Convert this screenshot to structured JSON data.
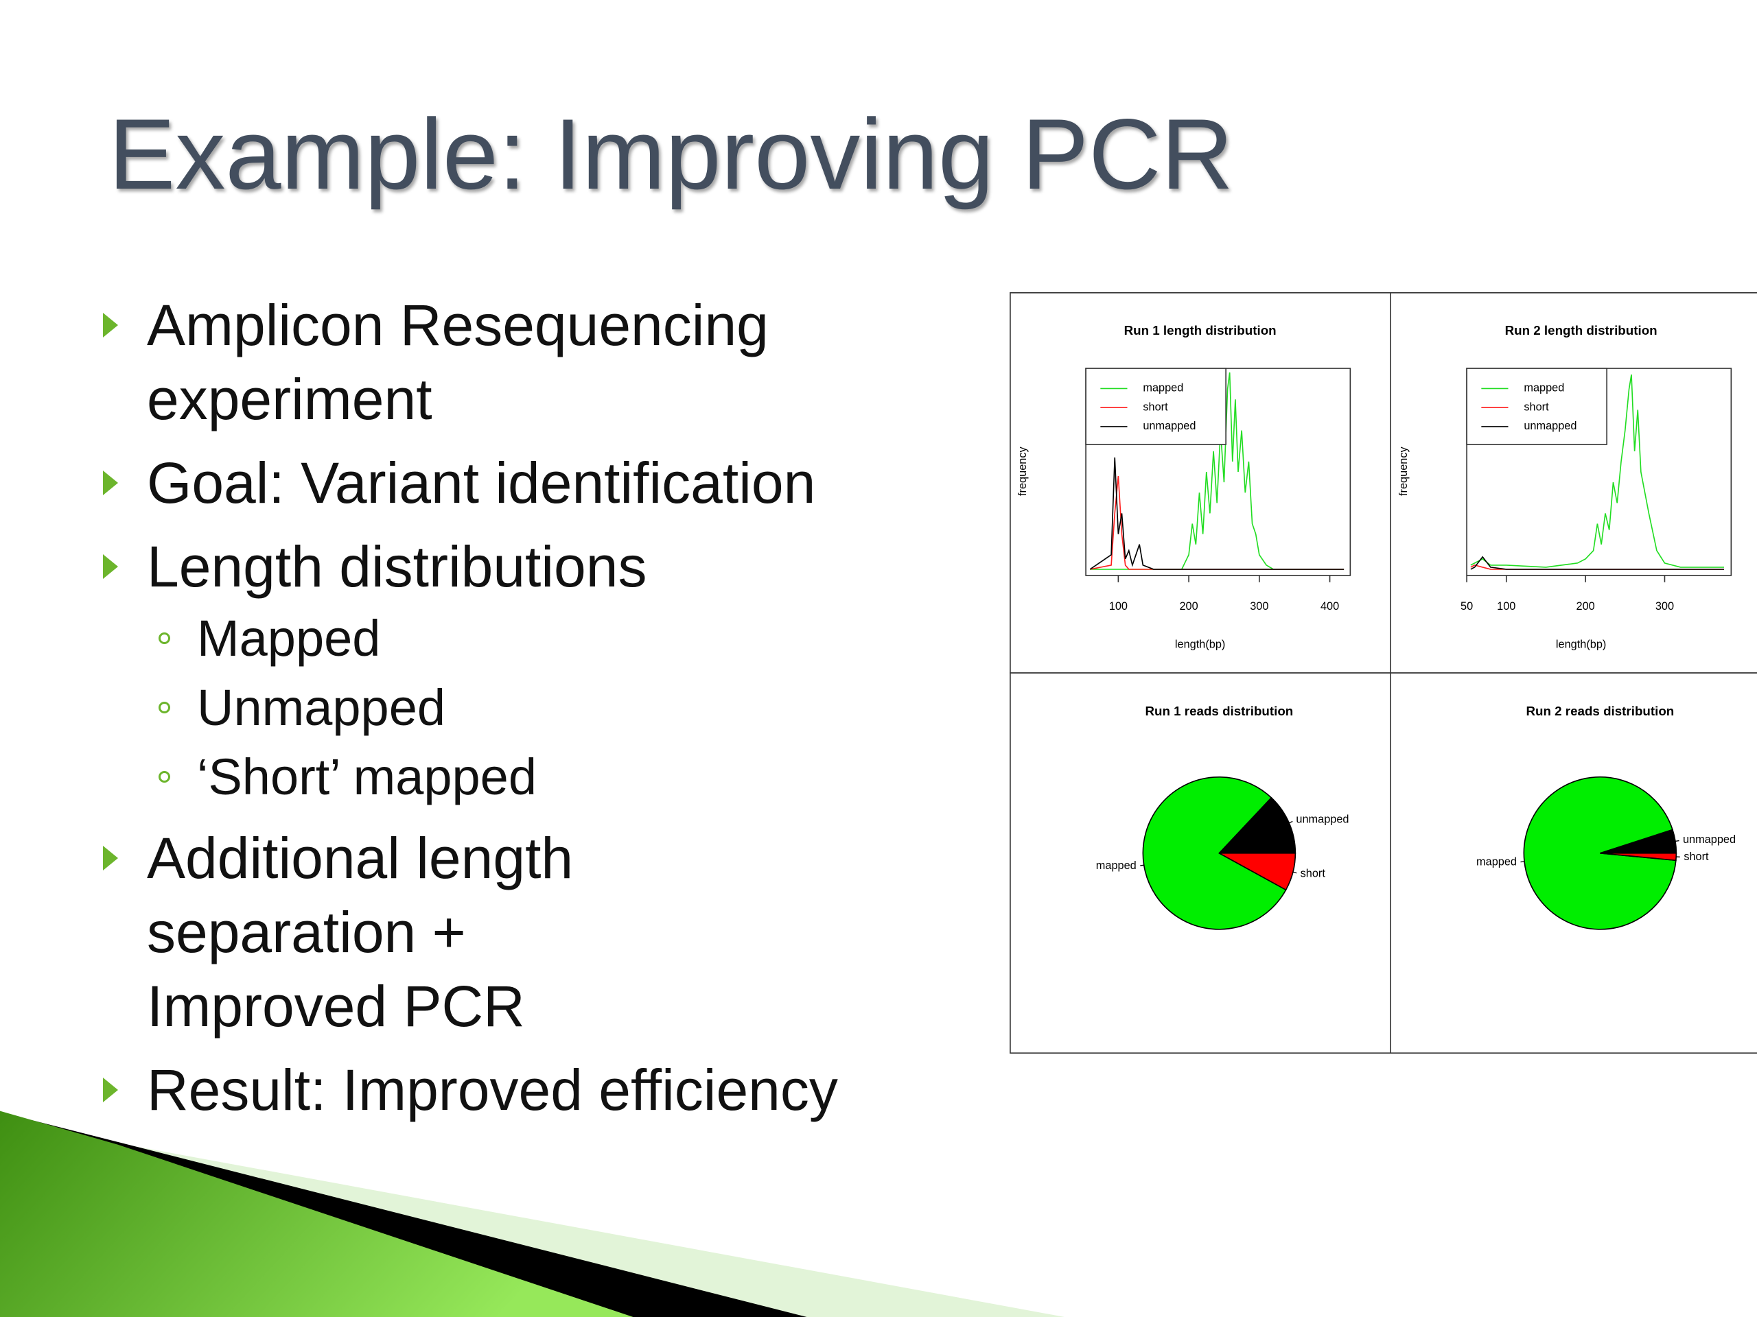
{
  "slide": {
    "title": "Example: Improving PCR",
    "bullets": [
      {
        "lines": [
          "Amplicon Resequencing",
          "experiment"
        ]
      },
      {
        "lines": [
          "Goal: Variant identification"
        ]
      },
      {
        "lines": [
          "Length distributions"
        ],
        "sub": [
          "Mapped",
          "Unmapped",
          "‘Short’ mapped"
        ]
      },
      {
        "lines": [
          "Additional length",
          "separation  +",
          "Improved PCR"
        ]
      },
      {
        "lines": [
          "Result: Improved efficiency"
        ]
      }
    ]
  },
  "chart_data": [
    {
      "type": "line",
      "title": "Run 1 length distribution",
      "xlabel": "length(bp)",
      "ylabel": "frequency",
      "x": [
        60,
        90,
        95,
        100,
        105,
        110,
        115,
        120,
        130,
        135,
        150,
        190,
        200,
        205,
        210,
        215,
        220,
        225,
        230,
        235,
        240,
        245,
        250,
        255,
        258,
        262,
        266,
        270,
        275,
        280,
        285,
        290,
        295,
        300,
        310,
        320,
        400,
        420
      ],
      "xlim": [
        54,
        429
      ],
      "xticks": [
        100,
        200,
        300,
        400
      ],
      "ylim": [
        0,
        100
      ],
      "legend": "topleft",
      "series": [
        {
          "name": "mapped",
          "color": "#22dd22",
          "values": [
            3,
            3,
            3,
            3,
            3,
            3,
            3,
            3,
            3,
            3,
            3,
            3,
            10,
            25,
            15,
            40,
            20,
            50,
            30,
            60,
            35,
            70,
            45,
            90,
            98,
            55,
            85,
            50,
            70,
            40,
            55,
            25,
            20,
            10,
            5,
            3,
            3,
            3
          ]
        },
        {
          "name": "short",
          "color": "#ff2020",
          "values": [
            3,
            5,
            30,
            48,
            20,
            5,
            3,
            3,
            3,
            3,
            3,
            3,
            3,
            3,
            3,
            3,
            3,
            3,
            3,
            3,
            3,
            3,
            3,
            3,
            3,
            3,
            3,
            3,
            3,
            3,
            3,
            3,
            3,
            3,
            3,
            3,
            3,
            3
          ]
        },
        {
          "name": "unmapped",
          "color": "#000000",
          "values": [
            3,
            10,
            57,
            20,
            30,
            8,
            12,
            5,
            15,
            5,
            3,
            3,
            3,
            3,
            3,
            3,
            3,
            3,
            3,
            3,
            3,
            3,
            3,
            3,
            3,
            3,
            3,
            3,
            3,
            3,
            3,
            3,
            3,
            3,
            3,
            3,
            3,
            3
          ]
        }
      ]
    },
    {
      "type": "line",
      "title": "Run 2 length distribution",
      "xlabel": "length(bp)",
      "ylabel": "frequency",
      "x": [
        55,
        60,
        70,
        80,
        100,
        150,
        190,
        200,
        210,
        215,
        220,
        225,
        230,
        235,
        240,
        245,
        250,
        255,
        258,
        262,
        266,
        270,
        275,
        280,
        290,
        300,
        320,
        375
      ],
      "xlim": [
        50,
        384
      ],
      "xticks": [
        50,
        100,
        200,
        300
      ],
      "ylim": [
        0,
        100
      ],
      "legend": "topleft",
      "series": [
        {
          "name": "mapped",
          "color": "#22dd22",
          "values": [
            5,
            6,
            8,
            5,
            5,
            4,
            6,
            8,
            12,
            25,
            15,
            30,
            22,
            45,
            35,
            55,
            70,
            90,
            97,
            60,
            80,
            50,
            40,
            30,
            12,
            6,
            4,
            4
          ]
        },
        {
          "name": "short",
          "color": "#ff2020",
          "values": [
            4,
            5,
            4,
            3,
            3,
            3,
            3,
            3,
            3,
            3,
            3,
            3,
            3,
            3,
            3,
            3,
            3,
            3,
            3,
            3,
            3,
            3,
            3,
            3,
            3,
            3,
            3,
            3
          ]
        },
        {
          "name": "unmapped",
          "color": "#000000",
          "values": [
            3,
            4,
            9,
            4,
            3,
            3,
            3,
            3,
            3,
            3,
            3,
            3,
            3,
            3,
            3,
            3,
            3,
            3,
            3,
            3,
            3,
            3,
            3,
            3,
            3,
            3,
            3,
            3
          ]
        }
      ]
    },
    {
      "type": "pie",
      "title": "Run 1 reads distribution",
      "categories": [
        "unmapped",
        "mapped",
        "short"
      ],
      "values": [
        13,
        79,
        8
      ],
      "colors": [
        "#000000",
        "#00ee00",
        "#ff0000"
      ]
    },
    {
      "type": "pie",
      "title": "Run 2 reads distribution",
      "categories": [
        "unmapped",
        "mapped",
        "short"
      ],
      "values": [
        5,
        93.5,
        1.5
      ],
      "colors": [
        "#000000",
        "#00ee00",
        "#ff0000"
      ]
    }
  ]
}
